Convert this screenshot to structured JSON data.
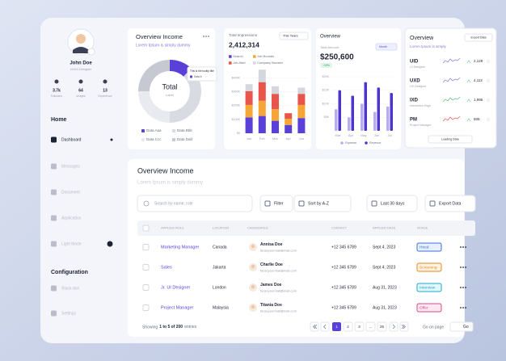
{
  "sidebar": {
    "name": "John Doe",
    "role": "UI/UX Designer",
    "stats": [
      {
        "value": "3.7k",
        "label": "Followers"
      },
      {
        "value": "64",
        "label": "Images"
      },
      {
        "value": "13",
        "label": "Experience"
      }
    ],
    "sections": [
      {
        "title": "Home",
        "items": [
          "Dashboard",
          "Messages",
          "Document",
          "Application",
          "Light Mode"
        ]
      },
      {
        "title": "Configuration",
        "items": [
          "Stack.don",
          "Settings"
        ]
      }
    ]
  },
  "chart_data": [
    {
      "type": "pie",
      "title": "Overview Income",
      "subtitle": "Lorem Ipsum is simply dummy",
      "center_label": "Total",
      "center_sublabel": "Label",
      "tooltip": {
        "title": "This is the tooltip title",
        "item": "Data A"
      },
      "categories": [
        "Data Aaa",
        "Data Bbb",
        "Data Ccc",
        "Data Ddd"
      ],
      "values": [
        12,
        38,
        25,
        25
      ],
      "colors": [
        "#5b3fd9",
        "#d9dbe2",
        "#e9eaef",
        "#c7c9d2"
      ]
    },
    {
      "type": "stacked-bar",
      "title": "Total Impressions",
      "value": "2,412,314",
      "period": "This Years",
      "categories": [
        "Jan",
        "Feb",
        "Mar",
        "Apr",
        "Jun"
      ],
      "ylim": [
        0,
        450
      ],
      "yticks": [
        {
          "value": 0,
          "label": "$0"
        },
        {
          "value": 100,
          "label": "$100K"
        },
        {
          "value": 200,
          "label": "$200K"
        },
        {
          "value": 300,
          "label": "$300K"
        },
        {
          "value": 400,
          "label": "$400K"
        }
      ],
      "series": [
        {
          "name": "Search",
          "color": "#5b3fd9",
          "values": [
            115,
            125,
            90,
            60,
            110
          ]
        },
        {
          "name": "Job Booster",
          "color": "#f6a637",
          "values": [
            90,
            110,
            85,
            45,
            95
          ]
        },
        {
          "name": "Job Alert",
          "color": "#e9554d",
          "values": [
            100,
            135,
            110,
            40,
            80
          ]
        },
        {
          "name": "Company Booster",
          "color": "#d5d7de",
          "values": [
            50,
            90,
            55,
            0,
            45
          ]
        }
      ]
    },
    {
      "type": "bar",
      "title": "Overview",
      "label": "Total Amount",
      "value": "$250,600",
      "period": "Month",
      "change": "+15%",
      "categories": [
        "Mar",
        "Apr",
        "May",
        "Jun",
        "Jul"
      ],
      "ylim": [
        0,
        20
      ],
      "yticks": [
        {
          "value": 5,
          "label": "$5K"
        },
        {
          "value": 10,
          "label": "$10K"
        },
        {
          "value": 15,
          "label": "$15K"
        },
        {
          "value": 20,
          "label": "$20K"
        }
      ],
      "series": [
        {
          "name": "Expense",
          "color": "#b7acef",
          "values": [
            8,
            5,
            10,
            7,
            9
          ]
        },
        {
          "name": "Revenue",
          "color": "#4f34c9",
          "values": [
            15,
            13,
            18,
            16,
            14
          ]
        }
      ]
    }
  ],
  "roles_card": {
    "title": "Overview",
    "button": "Export Data",
    "subtitle": "Lorem Ipsum is simply",
    "rows": [
      {
        "code": "UID",
        "role": "UI Designer",
        "value": "2,129"
      },
      {
        "code": "UXD",
        "role": "UX Designer",
        "value": "4,112"
      },
      {
        "code": "IXD",
        "role": "Interaction Dsgn",
        "value": "1,995"
      },
      {
        "code": "PM",
        "role": "Project Manager",
        "value": "505"
      }
    ],
    "footer": "Loading Data"
  },
  "table": {
    "title": "Overview Income",
    "subtitle": "Lorem Ipsum is simply dummy",
    "search": "Search by name, role",
    "filter": "Filter",
    "sort": "Sort by A-Z",
    "range": "Last 30 days",
    "export": "Export Data",
    "headers": [
      "APPLIED ROLE",
      "LOCATION",
      "CANDIDATES",
      "CONTACT",
      "APPLIED DATE",
      "STAGE"
    ],
    "rows": [
      [
        "Marketing Manager",
        "Canada",
        "Annisa Doe",
        "fanseyourmail@mail.com",
        "+12 345 6789",
        "Sept 4, 2023",
        "Hired"
      ],
      [
        "Sales",
        "Jakarta",
        "Charlie Doe",
        "fanseyourmail@mail.com",
        "+12 345 6789",
        "Sept 4, 2023",
        "Screening"
      ],
      [
        "Jr. UI Designer",
        "London",
        "James Doe",
        "fanseyourmail@mail.com",
        "+12 345 6789",
        "Aug 31, 2023",
        "Interview"
      ],
      [
        "Project Manager",
        "Malaysia",
        "Titania Doe",
        "fanseyourmail@mail.com",
        "+12 345 6789",
        "Aug 31, 2023",
        "Offer"
      ]
    ],
    "footer": {
      "prefix": "Showing",
      "range": "1 to 5 of 200",
      "suffix": "entries"
    },
    "pages": [
      "1",
      "2",
      "3",
      "...",
      "25"
    ],
    "go_label": "Go on page",
    "go": "Go"
  }
}
